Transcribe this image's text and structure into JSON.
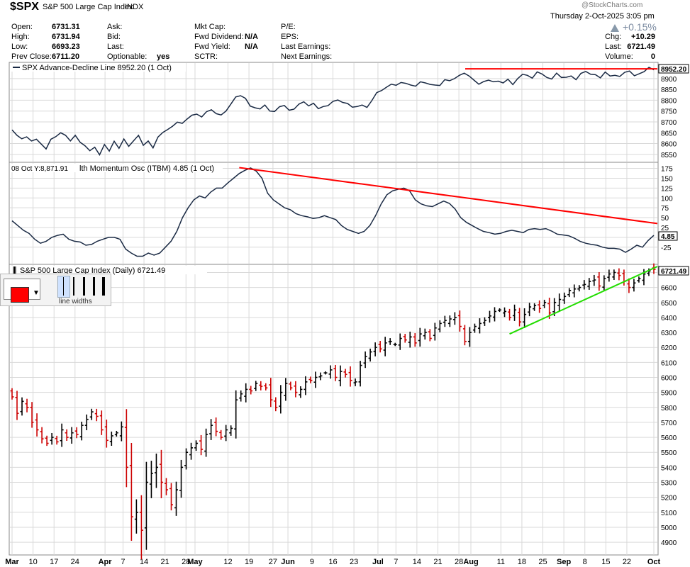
{
  "header": {
    "symbol": "$SPX",
    "name": "S&P 500 Large Cap Index",
    "exchange": "INDX",
    "watermark": "@StockCharts.com",
    "date": "Thursday  2-Oct-2025  3:05 pm",
    "open_label": "Open:",
    "open": "6731.31",
    "high_label": "High:",
    "high": "6731.94",
    "low_label": "Low:",
    "low": "6693.23",
    "prev_label": "Prev Close:",
    "prev": "6711.20",
    "ask_label": "Ask:",
    "bid_label": "Bid:",
    "last_label": "Last:",
    "optionable_label": "Optionable:",
    "optionable": "yes",
    "mktcap_label": "Mkt Cap:",
    "fwd_div_label": "Fwd Dividend:",
    "fwd_div": "N/A",
    "fwd_yield_label": "Fwd Yield:",
    "fwd_yield": "N/A",
    "sctr_label": "SCTR:",
    "pe_label": "P/E:",
    "eps_label": "EPS:",
    "last_earn_label": "Last Earnings:",
    "next_earn_label": "Next Earnings:",
    "pct_change": "+0.15%",
    "chg_label": "Chg:",
    "chg": "+10.29",
    "last_label2": "Last:",
    "last": "6721.49",
    "volume_label": "Volume:",
    "volume": "0"
  },
  "colors": {
    "up": "#000000",
    "down": "#cc0000",
    "line": "#1a2a44",
    "red_trend": "#ff0000",
    "green_trend": "#22dd00",
    "grid": "#d9d9d9"
  },
  "toolbox": {
    "label": "line widths",
    "color": "#ff0000"
  },
  "chart_data": [
    {
      "type": "line",
      "title": "SPX Advance-Decline Line 8952.20 (1 Oct)",
      "last_value": "8952.20",
      "ylim": [
        8520,
        8965
      ],
      "yticks": [
        8550,
        8600,
        8650,
        8700,
        8750,
        8800,
        8850,
        8900
      ],
      "values": [
        8663,
        8638,
        8622,
        8631,
        8612,
        8620,
        8598,
        8575,
        8620,
        8632,
        8650,
        8638,
        8612,
        8638,
        8606,
        8590,
        8567,
        8583,
        8548,
        8596,
        8565,
        8611,
        8578,
        8621,
        8587,
        8613,
        8638,
        8592,
        8612,
        8580,
        8630,
        8651,
        8665,
        8680,
        8699,
        8693,
        8713,
        8731,
        8736,
        8723,
        8747,
        8756,
        8738,
        8732,
        8750,
        8782,
        8815,
        8821,
        8809,
        8773,
        8765,
        8760,
        8778,
        8750,
        8748,
        8770,
        8776,
        8754,
        8759,
        8782,
        8793,
        8774,
        8786,
        8761,
        8771,
        8775,
        8795,
        8801,
        8790,
        8785,
        8768,
        8771,
        8778,
        8767,
        8798,
        8835,
        8845,
        8860,
        8874,
        8869,
        8882,
        8878,
        8870,
        8865,
        8885,
        8880,
        8873,
        8870,
        8868,
        8895,
        8890,
        8900,
        8915,
        8925,
        8912,
        8893,
        8874,
        8886,
        8893,
        8885,
        8888,
        8880,
        8897,
        8872,
        8900,
        8920,
        8915,
        8902,
        8931,
        8921,
        8905,
        8898,
        8925,
        8905,
        8906,
        8912,
        8895,
        8924,
        8933,
        8920,
        8918,
        8903,
        8930,
        8912,
        8915,
        8910,
        8929,
        8935,
        8913,
        8922,
        8932,
        8952,
        8940
      ],
      "trendline": {
        "type": "horizontal",
        "value": 8945
      }
    },
    {
      "type": "line",
      "title": "lth Momentum Osc (ITBM) 4.85 (1 Oct)",
      "cursor_readout": "08 Oct Y:8,871.91",
      "last_value": "4.85",
      "ylim": [
        -65,
        185
      ],
      "yticks": [
        -25,
        0,
        25,
        50,
        75,
        100,
        125,
        150,
        175
      ],
      "values": [
        42,
        30,
        18,
        10,
        -5,
        -15,
        -10,
        0,
        5,
        8,
        -5,
        -10,
        -12,
        -20,
        -18,
        -10,
        -5,
        0,
        0,
        -5,
        -30,
        -40,
        -48,
        -48,
        -40,
        -45,
        -40,
        -25,
        -10,
        15,
        50,
        75,
        95,
        105,
        100,
        115,
        125,
        125,
        138,
        150,
        162,
        170,
        176,
        168,
        150,
        112,
        95,
        85,
        75,
        70,
        60,
        55,
        52,
        48,
        50,
        55,
        50,
        45,
        30,
        20,
        15,
        10,
        15,
        30,
        55,
        85,
        108,
        118,
        122,
        125,
        118,
        95,
        85,
        80,
        78,
        85,
        92,
        86,
        72,
        50,
        38,
        30,
        22,
        15,
        12,
        8,
        10,
        15,
        18,
        15,
        12,
        20,
        22,
        20,
        22,
        16,
        8,
        6,
        4,
        -2,
        -10,
        -15,
        -18,
        -20,
        -25,
        -28,
        -28,
        -30,
        -38,
        -30,
        -20,
        -25,
        -8,
        5
      ],
      "trendline": {
        "type": "sloped",
        "from": [
          40,
          177
        ],
        "to": [
          114,
          35
        ]
      }
    },
    {
      "type": "ohlc",
      "title": "S&P 500 Large Cap Index (Daily) 6721.49",
      "last_value": "6721.49",
      "ylim": [
        4820,
        6740
      ],
      "yticks": [
        4900,
        5000,
        5100,
        5200,
        5300,
        5400,
        5500,
        5600,
        5700,
        5800,
        5900,
        6000,
        6100,
        6200,
        6300,
        6400,
        6500,
        6600,
        6700
      ],
      "x_labels": [
        "Mar",
        "10",
        "17",
        "24",
        "Apr",
        "7",
        "14",
        "21",
        "28",
        "May",
        "12",
        "19",
        "27",
        "Jun",
        "9",
        "16",
        "23",
        "Jul",
        "7",
        "14",
        "21",
        "28",
        "Aug",
        "11",
        "18",
        "25",
        "Sep",
        "8",
        "15",
        "22",
        "Oct"
      ],
      "x_label_days": [
        0,
        7,
        14,
        21,
        31,
        37,
        44,
        51,
        58,
        61,
        72,
        79,
        87,
        92,
        100,
        107,
        114,
        122,
        128,
        135,
        142,
        149,
        153,
        163,
        170,
        177,
        184,
        191,
        198,
        205,
        214
      ],
      "closes": [
        5870,
        5760,
        5840,
        5800,
        5700,
        5650,
        5590,
        5560,
        5600,
        5570,
        5650,
        5600,
        5630,
        5620,
        5680,
        5720,
        5770,
        5740,
        5650,
        5580,
        5610,
        5630,
        5670,
        5400,
        5070,
        5100,
        4980,
        5300,
        5360,
        5400,
        5300,
        5250,
        5150,
        5250,
        5400,
        5500,
        5530,
        5560,
        5520,
        5620,
        5680,
        5640,
        5600,
        5650,
        5660,
        5850,
        5890,
        5920,
        5910,
        5960,
        5940,
        5930,
        5850,
        5800,
        5900,
        5960,
        5930,
        5900,
        5920,
        5970,
        5980,
        6000,
        6010,
        6030,
        6050,
        6000,
        6040,
        6020,
        5980,
        5970,
        6080,
        6140,
        6170,
        6200,
        6190,
        6230,
        6240,
        6220,
        6260,
        6250,
        6270,
        6230,
        6290,
        6300,
        6260,
        6330,
        6360,
        6380,
        6390,
        6400,
        6340,
        6240,
        6300,
        6340,
        6360,
        6380,
        6410,
        6440,
        6450,
        6440,
        6400,
        6450,
        6370,
        6420,
        6470,
        6480,
        6460,
        6500,
        6430,
        6500,
        6520,
        6540,
        6580,
        6590,
        6600,
        6620,
        6640,
        6650,
        6610,
        6660,
        6690,
        6700,
        6680,
        6640,
        6600,
        6630,
        6660,
        6690,
        6710,
        6721
      ],
      "trendline": {
        "type": "sloped",
        "from": [
          6290,
          6740
        ]
      }
    }
  ]
}
